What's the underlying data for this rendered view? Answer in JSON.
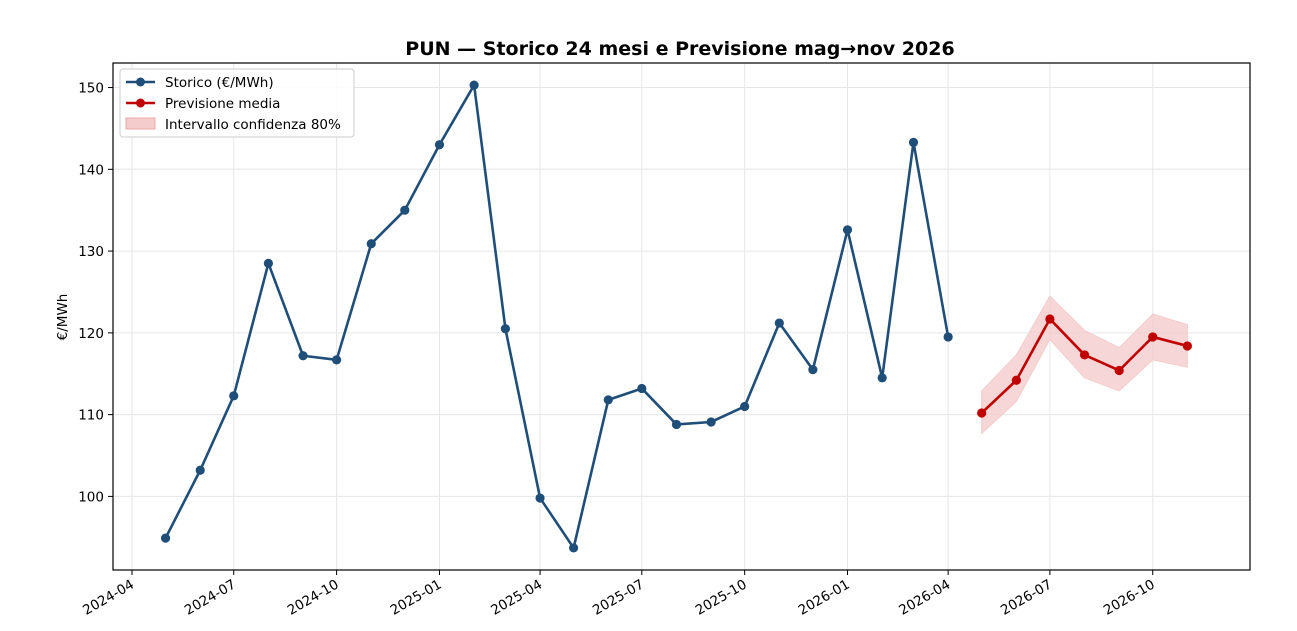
{
  "chart_data": {
    "type": "line",
    "title": "PUN — Storico 24 mesi e Previsione mag→nov 2026",
    "xlabel": "",
    "ylabel": "€/MWh",
    "grid": true,
    "legend_position": "top-left",
    "ylim": [
      91,
      153
    ],
    "yticks": [
      100,
      110,
      120,
      130,
      140,
      150
    ],
    "xlim": [
      "2024-03-15",
      "2026-12-27"
    ],
    "xticks": [
      "2024-04",
      "2024-07",
      "2024-10",
      "2025-01",
      "2025-04",
      "2025-07",
      "2025-10",
      "2026-01",
      "2026-04",
      "2026-07",
      "2026-10"
    ],
    "series": [
      {
        "name": "Storico (€/MWh)",
        "color": "#1f4e79",
        "x": [
          "2024-05",
          "2024-06",
          "2024-07",
          "2024-08",
          "2024-09",
          "2024-10",
          "2024-11",
          "2024-12",
          "2025-01",
          "2025-02",
          "2025-03",
          "2025-04",
          "2025-05",
          "2025-06",
          "2025-07",
          "2025-08",
          "2025-09",
          "2025-10",
          "2025-11",
          "2025-12",
          "2026-01",
          "2026-02",
          "2026-03",
          "2026-04"
        ],
        "values": [
          94.9,
          103.2,
          112.3,
          128.5,
          117.2,
          116.7,
          130.9,
          135.0,
          143.0,
          150.3,
          120.5,
          99.8,
          93.7,
          111.8,
          113.2,
          108.8,
          109.1,
          111.0,
          121.2,
          115.5,
          132.6,
          114.5,
          143.3,
          119.5
        ]
      },
      {
        "name": "Previsione media",
        "color": "#c00000",
        "x": [
          "2026-05",
          "2026-06",
          "2026-07",
          "2026-08",
          "2026-09",
          "2026-10",
          "2026-11"
        ],
        "values": [
          110.2,
          114.2,
          121.7,
          117.3,
          115.4,
          119.5,
          118.4
        ]
      }
    ],
    "confidence_band": {
      "name": "Intervallo confidenza 80%",
      "color": "#f4cccc",
      "x": [
        "2026-05",
        "2026-06",
        "2026-07",
        "2026-08",
        "2026-09",
        "2026-10",
        "2026-11"
      ],
      "lower": [
        107.7,
        111.6,
        119.2,
        114.5,
        112.9,
        116.7,
        115.8
      ],
      "upper": [
        112.9,
        117.3,
        124.5,
        120.3,
        118.2,
        122.3,
        121.0
      ]
    }
  }
}
